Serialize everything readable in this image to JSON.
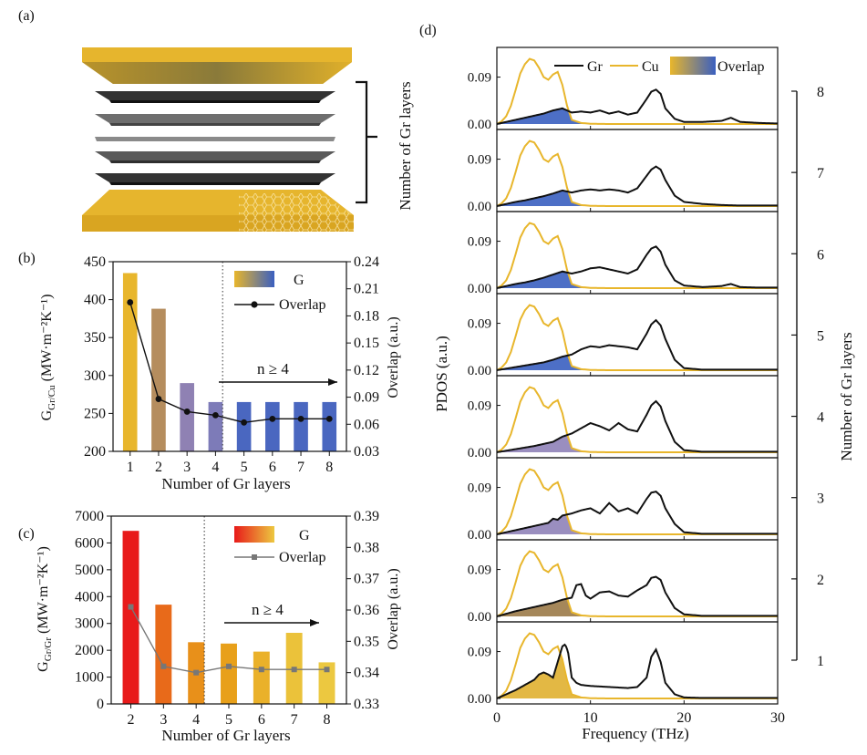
{
  "panel_labels": {
    "a": "(a)",
    "b": "(b)",
    "c": "(c)",
    "d": "(d)"
  },
  "schematic": {
    "bracket_label": "Number of Gr layers"
  },
  "colors": {
    "cu_gold": "#e8b62c",
    "gr_dark": "#2a2a2a",
    "panel_b_bars": [
      "#e8b62c",
      "#b58d5e",
      "#8f81b3",
      "#7d7bb8",
      "#4a67c0",
      "#4a67c0",
      "#4a67c0",
      "#4a67c0"
    ],
    "panel_c_bars": [
      "#e81a1a",
      "#e86a1a",
      "#e8901a",
      "#e8a01a",
      "#eab12a",
      "#ebc23a",
      "#ecc840"
    ],
    "overlap_fill_gold": "#e0b030",
    "overlap_fill_brown": "#9b7a48",
    "overlap_fill_purple": "#8f82b8",
    "overlap_fill_blue": "#3a5fc0"
  },
  "chart_data": [
    {
      "id": "b",
      "type": "bar",
      "categories": [
        "1",
        "2",
        "3",
        "4",
        "5",
        "6",
        "7",
        "8"
      ],
      "xlabel": "Number of Gr layers",
      "ylabel_main": "G",
      "ylabel_sub": "Gr/Cu",
      "ylabel_units": "(MW·m⁻²K⁻¹)",
      "ylim": [
        200,
        450
      ],
      "yticks": [
        "200",
        "250",
        "300",
        "350",
        "400",
        "450"
      ],
      "y2label": "Overlap (a.u.)",
      "y2lim": [
        0.03,
        0.24
      ],
      "y2ticks": [
        "0.03",
        "0.06",
        "0.09",
        "0.12",
        "0.15",
        "0.18",
        "0.21",
        "0.24"
      ],
      "series": [
        {
          "name": "G",
          "kind": "bar",
          "values": [
            435,
            388,
            290,
            265,
            265,
            265,
            265,
            265
          ]
        },
        {
          "name": "Overlap",
          "kind": "line",
          "axis": "right",
          "marker": "circle",
          "values": [
            0.195,
            0.088,
            0.074,
            0.07,
            0.062,
            0.066,
            0.066,
            0.066
          ]
        }
      ],
      "legend": [
        "G",
        "Overlap"
      ],
      "annotation": "n ≥ 4",
      "divider_after": "4"
    },
    {
      "id": "c",
      "type": "bar",
      "categories": [
        "2",
        "3",
        "4",
        "5",
        "6",
        "7",
        "8"
      ],
      "xlabel": "Number of Gr layers",
      "ylabel_main": "G",
      "ylabel_sub": "Gr/Gr",
      "ylabel_units": "(MW·m⁻²K⁻¹)",
      "ylim": [
        0,
        7000
      ],
      "yticks": [
        "0",
        "1000",
        "2000",
        "3000",
        "4000",
        "5000",
        "6000",
        "7000"
      ],
      "y2label": "Overlap (a.u.)",
      "y2lim": [
        0.33,
        0.39
      ],
      "y2ticks": [
        "0.33",
        "0.34",
        "0.35",
        "0.36",
        "0.37",
        "0.38",
        "0.39"
      ],
      "series": [
        {
          "name": "G",
          "kind": "bar",
          "values": [
            6450,
            3700,
            2300,
            2250,
            1950,
            2650,
            1550
          ]
        },
        {
          "name": "Overlap",
          "kind": "line",
          "axis": "right",
          "marker": "square",
          "values": [
            0.361,
            0.342,
            0.34,
            0.342,
            0.341,
            0.341,
            0.341
          ]
        }
      ],
      "legend": [
        "G",
        "Overlap"
      ],
      "annotation": "n ≥ 4",
      "divider_after": "4"
    },
    {
      "id": "d",
      "type": "line",
      "xlabel": "Frequency (THz)",
      "ylabel": "PDOS (a.u.)",
      "y2label": "Number of Gr layers",
      "xlim": [
        0,
        30
      ],
      "xticks": [
        "0",
        "10",
        "20",
        "30"
      ],
      "panel_yticks": [
        "0.00",
        "0.09"
      ],
      "panel_ylim": [
        0,
        0.14
      ],
      "layer_ticks": [
        "8",
        "7",
        "6",
        "5",
        "4",
        "3",
        "2",
        "1"
      ],
      "legend": [
        "Gr",
        "Cu",
        "Overlap"
      ],
      "cu_curve": {
        "x": [
          0,
          0.5,
          1,
          1.5,
          2,
          2.5,
          3,
          3.5,
          4,
          4.5,
          5,
          5.5,
          6,
          6.5,
          7,
          7.5,
          8,
          9,
          10,
          12,
          30
        ],
        "y": [
          0,
          0.005,
          0.015,
          0.035,
          0.065,
          0.097,
          0.115,
          0.125,
          0.122,
          0.108,
          0.09,
          0.085,
          0.095,
          0.1,
          0.075,
          0.035,
          0.008,
          0.002,
          0.0005,
          0,
          0
        ]
      },
      "panels": [
        {
          "layers": "8",
          "overlap_color": "blue",
          "gr_x": [
            0,
            1,
            2,
            3,
            4,
            5,
            6,
            7,
            8,
            9,
            10,
            11,
            12,
            13,
            14,
            15,
            16,
            16.5,
            17,
            17.5,
            18,
            19,
            20,
            22,
            24,
            25,
            26,
            28,
            30
          ],
          "gr_y": [
            0,
            0.004,
            0.008,
            0.012,
            0.016,
            0.02,
            0.026,
            0.03,
            0.022,
            0.024,
            0.022,
            0.026,
            0.02,
            0.024,
            0.018,
            0.022,
            0.048,
            0.062,
            0.066,
            0.058,
            0.03,
            0.01,
            0.004,
            0.004,
            0.006,
            0.012,
            0.004,
            0.002,
            0.001
          ]
        },
        {
          "layers": "7",
          "overlap_color": "blue",
          "gr_x": [
            0,
            1,
            2,
            3,
            4,
            5,
            6,
            7,
            8,
            9,
            10,
            11,
            12,
            13,
            14,
            15,
            16,
            16.5,
            17,
            17.5,
            18,
            19,
            20,
            22,
            24,
            26,
            28,
            30
          ],
          "gr_y": [
            0,
            0.004,
            0.008,
            0.011,
            0.015,
            0.019,
            0.024,
            0.03,
            0.026,
            0.03,
            0.032,
            0.03,
            0.032,
            0.03,
            0.026,
            0.034,
            0.058,
            0.07,
            0.076,
            0.07,
            0.05,
            0.02,
            0.008,
            0.004,
            0.002,
            0.001,
            0.001,
            0.001
          ]
        },
        {
          "layers": "6",
          "overlap_color": "blue",
          "gr_x": [
            0,
            1,
            2,
            3,
            4,
            5,
            6,
            7,
            8,
            9,
            10,
            11,
            12,
            13,
            14,
            15,
            16,
            16.5,
            17,
            17.5,
            18,
            19,
            20,
            22,
            24,
            25,
            26,
            28,
            30
          ],
          "gr_y": [
            0,
            0.004,
            0.008,
            0.011,
            0.015,
            0.02,
            0.026,
            0.032,
            0.028,
            0.032,
            0.038,
            0.04,
            0.036,
            0.032,
            0.028,
            0.036,
            0.064,
            0.076,
            0.08,
            0.07,
            0.045,
            0.015,
            0.005,
            0.002,
            0.004,
            0.008,
            0.002,
            0.001,
            0.001
          ]
        },
        {
          "layers": "5",
          "overlap_color": "blue",
          "gr_x": [
            0,
            1,
            2,
            3,
            4,
            5,
            6,
            7,
            8,
            9,
            10,
            11,
            12,
            13,
            14,
            15,
            16,
            16.5,
            17,
            17.5,
            18,
            19,
            20,
            22,
            30
          ],
          "gr_y": [
            0,
            0.003,
            0.006,
            0.009,
            0.012,
            0.015,
            0.02,
            0.026,
            0.03,
            0.04,
            0.046,
            0.044,
            0.048,
            0.046,
            0.044,
            0.04,
            0.07,
            0.088,
            0.096,
            0.086,
            0.06,
            0.02,
            0.004,
            0.001,
            0.001
          ]
        },
        {
          "layers": "4",
          "overlap_color": "purple",
          "gr_x": [
            0,
            1,
            2,
            3,
            4,
            5,
            6,
            7,
            8,
            9,
            10,
            11,
            12,
            13,
            14,
            15,
            16,
            16.5,
            17,
            17.5,
            18,
            19,
            20,
            22,
            30
          ],
          "gr_y": [
            0,
            0.003,
            0.006,
            0.009,
            0.012,
            0.016,
            0.02,
            0.03,
            0.036,
            0.046,
            0.056,
            0.05,
            0.042,
            0.056,
            0.044,
            0.04,
            0.072,
            0.09,
            0.098,
            0.088,
            0.06,
            0.02,
            0.004,
            0.001,
            0.001
          ]
        },
        {
          "layers": "3",
          "overlap_color": "purple",
          "gr_x": [
            0,
            1,
            2,
            3,
            4,
            5,
            5.5,
            6,
            6.5,
            7,
            8,
            9,
            10,
            11,
            12,
            13,
            14,
            15,
            16,
            16.5,
            17,
            17.5,
            18,
            19,
            20,
            22,
            30
          ],
          "gr_y": [
            0,
            0.004,
            0.008,
            0.012,
            0.016,
            0.02,
            0.022,
            0.03,
            0.028,
            0.036,
            0.04,
            0.046,
            0.05,
            0.04,
            0.06,
            0.044,
            0.05,
            0.04,
            0.068,
            0.08,
            0.082,
            0.074,
            0.05,
            0.02,
            0.004,
            0.001,
            0.001
          ]
        },
        {
          "layers": "2",
          "overlap_color": "brown",
          "gr_x": [
            0,
            1,
            2,
            3,
            4,
            5,
            6,
            7,
            8,
            8.5,
            9,
            9.5,
            10,
            11,
            12,
            13,
            14,
            15,
            16,
            16.5,
            17,
            17.5,
            18,
            19,
            20,
            22,
            30
          ],
          "gr_y": [
            0,
            0.005,
            0.01,
            0.014,
            0.018,
            0.022,
            0.026,
            0.032,
            0.036,
            0.06,
            0.062,
            0.04,
            0.034,
            0.046,
            0.048,
            0.04,
            0.038,
            0.05,
            0.06,
            0.074,
            0.076,
            0.07,
            0.046,
            0.016,
            0.004,
            0.001,
            0.001
          ]
        },
        {
          "layers": "1",
          "overlap_color": "gold",
          "gr_x": [
            0,
            1,
            2,
            3,
            4,
            4.5,
            5,
            5.5,
            6,
            6.5,
            7,
            7.3,
            7.6,
            8,
            8.5,
            9,
            10,
            12,
            14,
            15,
            16,
            16.5,
            17,
            17.5,
            18,
            19,
            20,
            22,
            30
          ],
          "gr_y": [
            0,
            0.008,
            0.016,
            0.026,
            0.036,
            0.046,
            0.05,
            0.046,
            0.04,
            0.07,
            0.1,
            0.104,
            0.09,
            0.04,
            0.03,
            0.026,
            0.024,
            0.022,
            0.02,
            0.022,
            0.04,
            0.08,
            0.094,
            0.07,
            0.03,
            0.008,
            0.002,
            0.001,
            0.001
          ]
        }
      ]
    }
  ]
}
